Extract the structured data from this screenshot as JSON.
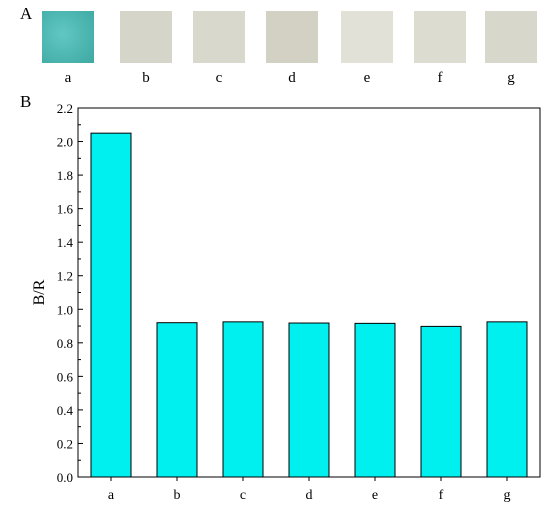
{
  "panels": {
    "a": "A",
    "b": "B"
  },
  "swatches": [
    {
      "label": "a",
      "color": "#4db6b1"
    },
    {
      "label": "b",
      "color": "#d6d5c9"
    },
    {
      "label": "c",
      "color": "#d9d8cc"
    },
    {
      "label": "d",
      "color": "#d2d1c4"
    },
    {
      "label": "e",
      "color": "#e2e1d8"
    },
    {
      "label": "f",
      "color": "#dddcd0"
    },
    {
      "label": "g",
      "color": "#d8d7cb"
    }
  ],
  "chart_data": {
    "type": "bar",
    "categories": [
      "a",
      "b",
      "c",
      "d",
      "e",
      "f",
      "g"
    ],
    "values": [
      2.05,
      0.92,
      0.925,
      0.918,
      0.916,
      0.898,
      0.925
    ],
    "xlabel": "",
    "ylabel": "B/R",
    "ylim": [
      0,
      2.2
    ],
    "yticks": [
      "0.0",
      "0.2",
      "0.4",
      "0.6",
      "0.8",
      "1.0",
      "1.2",
      "1.4",
      "1.6",
      "1.8",
      "2.0",
      "2.2"
    ],
    "bar_color": "#00f0f0",
    "bar_edge": "#000000",
    "grid": false
  }
}
